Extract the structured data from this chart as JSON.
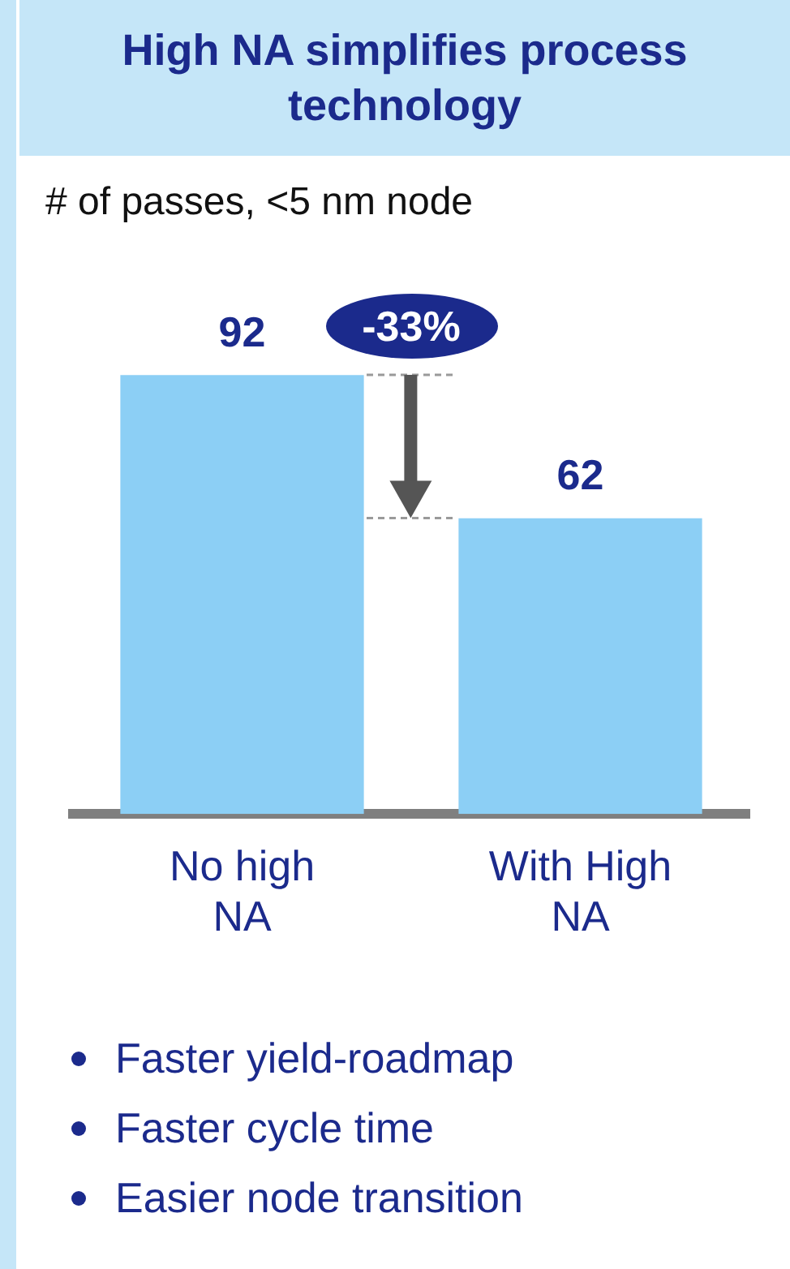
{
  "chart_data": {
    "type": "bar",
    "title": "High NA simplifies process technology",
    "subtitle": "# of passes, <5 nm node",
    "categories": [
      "No high NA",
      "With High NA"
    ],
    "values": [
      92,
      62
    ],
    "color": "#8ccff5",
    "data_labels": true,
    "grid": false,
    "legend": false,
    "annotations": [
      "-33%",
      "Faster yield-roadmap",
      "Faster cycle time",
      "Easier node transition"
    ]
  }
}
